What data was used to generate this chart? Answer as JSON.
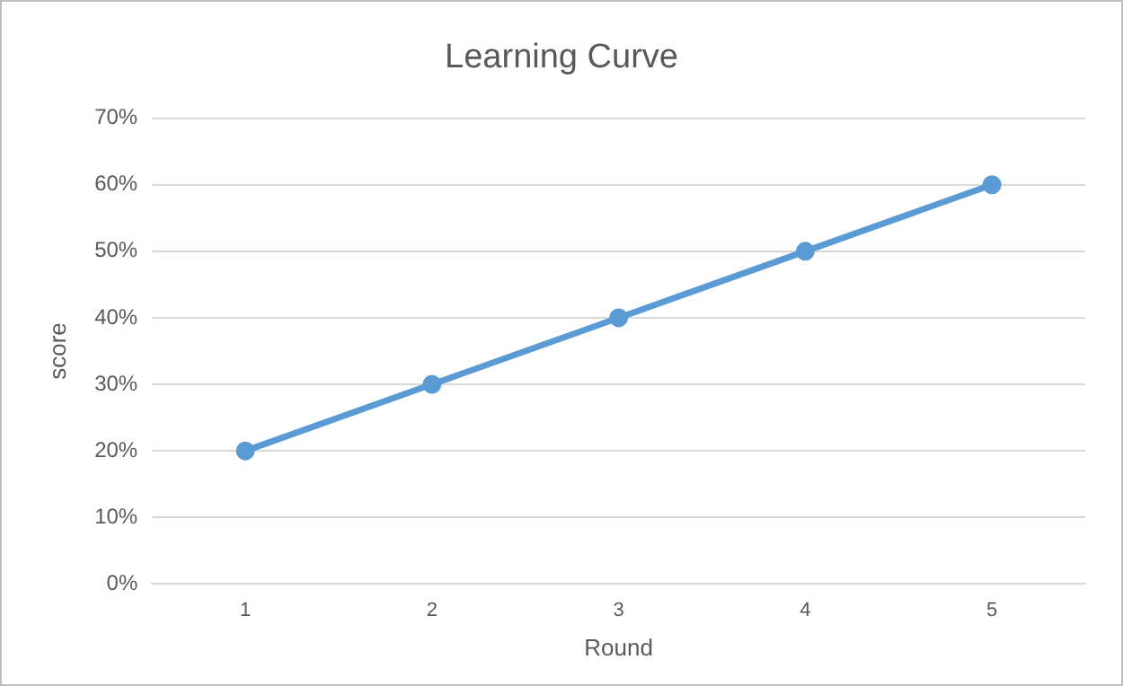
{
  "chart_data": {
    "type": "line",
    "title": "Learning Curve",
    "xlabel": "Round",
    "ylabel": "score",
    "categories": [
      "1",
      "2",
      "3",
      "4",
      "5"
    ],
    "series": [
      {
        "color": "#5b9bd5",
        "values": [
          20,
          30,
          40,
          50,
          60
        ]
      }
    ],
    "ylim": [
      0,
      70
    ],
    "yticks": [
      {
        "value": 0,
        "label": "0%"
      },
      {
        "value": 10,
        "label": "10%"
      },
      {
        "value": 20,
        "label": "20%"
      },
      {
        "value": 30,
        "label": "30%"
      },
      {
        "value": 40,
        "label": "40%"
      },
      {
        "value": 50,
        "label": "50%"
      },
      {
        "value": 60,
        "label": "60%"
      },
      {
        "value": 70,
        "label": "70%"
      }
    ],
    "grid": "y",
    "legend": false,
    "marker": "circle",
    "line_style": "solid"
  }
}
